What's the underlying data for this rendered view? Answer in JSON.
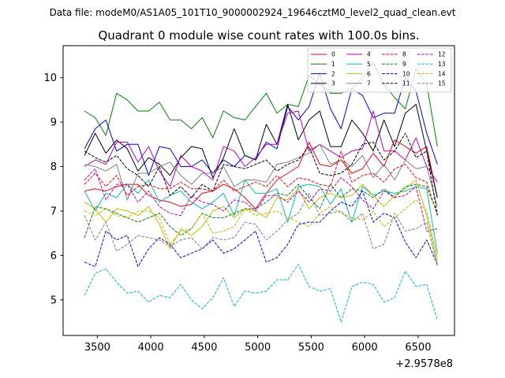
{
  "header": {
    "suptitle": "Data file: modeM0/AS1A05_101T10_9000002924_19646cztM0_level2_quad_clean.evt"
  },
  "chart_data": {
    "type": "line",
    "title": "Quadrant 0 module wise count rates with 100.0s bins.",
    "xlabel": "",
    "ylabel": "",
    "x_offset_label": "+2.9578e8",
    "xlim": [
      3180,
      6840
    ],
    "ylim": [
      4.2,
      10.72
    ],
    "xticks": [
      3500,
      4000,
      4500,
      5000,
      5500,
      6000,
      6500
    ],
    "yticks": [
      5,
      6,
      7,
      8,
      9,
      10
    ],
    "grid": false,
    "legend_position": "top-right",
    "x": [
      3380,
      3480,
      3580,
      3680,
      3780,
      3880,
      3980,
      4080,
      4180,
      4280,
      4380,
      4480,
      4580,
      4680,
      4780,
      4880,
      4980,
      5080,
      5180,
      5280,
      5380,
      5480,
      5580,
      5680,
      5780,
      5880,
      5980,
      6080,
      6180,
      6280,
      6380,
      6480,
      6580,
      6680
    ],
    "series": [
      {
        "name": "0",
        "color": "#ff0000",
        "dash": "solid",
        "values": [
          7.45,
          7.5,
          7.45,
          7.55,
          7.6,
          7.6,
          7.35,
          7.25,
          7.2,
          7.1,
          7.15,
          7.4,
          7.45,
          7.6,
          7.5,
          7.3,
          7.05,
          7.4,
          7.7,
          7.85,
          8.0,
          8.55,
          8.05,
          8.0,
          8.15,
          7.85,
          7.95,
          8.3,
          8.0,
          8.6,
          8.45,
          8.3,
          8.45,
          7.3
        ]
      },
      {
        "name": "1",
        "color": "#008000",
        "dash": "solid",
        "values": [
          9.25,
          9.1,
          8.7,
          9.65,
          9.5,
          9.25,
          9.25,
          9.45,
          9.05,
          9.05,
          8.85,
          9.1,
          8.65,
          9.25,
          9.1,
          9.05,
          9.35,
          9.65,
          9.2,
          9.4,
          9.35,
          10.05,
          9.85,
          9.65,
          9.65,
          9.75,
          10.0,
          10.35,
          9.85,
          9.55,
          9.3,
          10.2,
          9.85,
          8.45
        ]
      },
      {
        "name": "2",
        "color": "#0000ff",
        "dash": "solid",
        "values": [
          8.4,
          8.85,
          9.05,
          8.35,
          8.5,
          8.5,
          7.8,
          8.45,
          8.4,
          8.0,
          8.0,
          8.15,
          7.85,
          8.15,
          8.0,
          8.25,
          8.15,
          8.55,
          8.4,
          9.35,
          9.05,
          9.35,
          10.1,
          9.3,
          8.85,
          9.75,
          9.6,
          9.1,
          9.2,
          9.2,
          10.0,
          9.7,
          8.75,
          8.05
        ]
      },
      {
        "name": "3",
        "color": "#000000",
        "dash": "solid",
        "values": [
          8.25,
          8.75,
          8.3,
          8.6,
          8.4,
          7.9,
          8.2,
          8.05,
          7.8,
          8.2,
          8.45,
          8.4,
          7.75,
          8.2,
          8.85,
          8.25,
          8.15,
          8.95,
          8.5,
          9.4,
          8.6,
          9.05,
          9.25,
          8.45,
          8.45,
          9.05,
          8.75,
          8.35,
          9.05,
          8.45,
          9.2,
          9.4,
          8.35,
          7.3
        ]
      },
      {
        "name": "4",
        "color": "#bf00bf",
        "dash": "solid",
        "values": [
          8.0,
          8.15,
          8.05,
          8.55,
          8.55,
          8.1,
          8.45,
          7.9,
          7.55,
          8.25,
          8.0,
          7.9,
          7.7,
          8.45,
          8.35,
          8.0,
          8.2,
          8.5,
          8.5,
          9.2,
          9.25,
          8.35,
          8.5,
          8.35,
          8.2,
          8.35,
          8.4,
          9.25,
          8.35,
          8.35,
          8.15,
          8.65,
          8.0,
          7.65
        ]
      },
      {
        "name": "5",
        "color": "#00bfbf",
        "dash": "solid",
        "values": [
          7.45,
          7.0,
          7.4,
          7.3,
          7.6,
          7.4,
          7.7,
          7.2,
          7.35,
          7.45,
          7.2,
          7.05,
          7.2,
          7.4,
          6.9,
          7.7,
          7.4,
          7.4,
          7.5,
          6.75,
          7.55,
          7.6,
          7.55,
          7.15,
          7.5,
          6.75,
          7.55,
          7.35,
          7.45,
          7.4,
          7.45,
          7.55,
          7.5,
          6.05
        ]
      },
      {
        "name": "6",
        "color": "#bfbf00",
        "dash": "solid",
        "values": [
          7.2,
          7.05,
          6.75,
          7.05,
          7.0,
          6.9,
          7.1,
          6.7,
          6.15,
          6.6,
          6.45,
          6.65,
          7.0,
          7.1,
          6.85,
          7.05,
          7.0,
          6.85,
          7.3,
          7.25,
          7.5,
          7.05,
          7.3,
          7.4,
          7.3,
          7.35,
          7.6,
          7.35,
          7.1,
          7.35,
          7.5,
          7.7,
          6.9,
          5.85
        ]
      },
      {
        "name": "7",
        "color": "#808080",
        "dash": "solid",
        "values": [
          8.05,
          8.0,
          7.9,
          8.05,
          7.25,
          7.85,
          7.85,
          8.0,
          8.1,
          7.8,
          7.6,
          7.85,
          7.85,
          8.0,
          7.55,
          7.7,
          7.7,
          7.65,
          8.05,
          8.1,
          8.2,
          8.3,
          8.5,
          8.05,
          8.15,
          8.0,
          8.25,
          7.75,
          8.05,
          7.7,
          8.15,
          7.95,
          8.0,
          7.1
        ]
      },
      {
        "name": "8",
        "color": "#ff0000",
        "dash": "dashed",
        "values": [
          7.6,
          7.85,
          7.55,
          7.8,
          7.35,
          7.55,
          7.6,
          7.5,
          7.5,
          7.65,
          7.5,
          7.5,
          7.45,
          7.7,
          7.45,
          7.55,
          7.65,
          7.55,
          7.8,
          7.55,
          7.75,
          7.7,
          7.6,
          7.55,
          8.35,
          7.65,
          7.8,
          7.85,
          7.65,
          7.95,
          8.05,
          7.75,
          7.65,
          6.9
        ]
      },
      {
        "name": "9",
        "color": "#008000",
        "dash": "dashed",
        "values": [
          6.4,
          7.1,
          7.05,
          6.95,
          6.85,
          6.75,
          6.85,
          6.95,
          6.65,
          6.45,
          6.6,
          6.95,
          6.85,
          6.85,
          6.95,
          7.05,
          7.05,
          7.2,
          7.4,
          7.35,
          7.6,
          7.3,
          7.05,
          7.6,
          7.3,
          7.5,
          7.45,
          7.3,
          7.5,
          7.3,
          7.55,
          7.6,
          7.55,
          6.95
        ]
      },
      {
        "name": "10",
        "color": "#0000ff",
        "dash": "dashed",
        "values": [
          5.85,
          5.75,
          6.55,
          6.35,
          6.45,
          5.75,
          6.15,
          6.4,
          6.25,
          5.95,
          6.05,
          6.15,
          6.35,
          6.05,
          6.15,
          6.35,
          6.55,
          5.85,
          5.95,
          6.25,
          6.7,
          6.75,
          6.75,
          7.0,
          7.2,
          7.1,
          7.45,
          6.75,
          6.95,
          6.85,
          6.3,
          5.95,
          6.35,
          5.8
        ]
      },
      {
        "name": "11",
        "color": "#000000",
        "dash": "dashed",
        "values": [
          8.35,
          8.2,
          8.1,
          8.25,
          7.95,
          7.8,
          7.55,
          8.0,
          7.35,
          7.55,
          7.3,
          7.6,
          7.45,
          8.05,
          8.0,
          7.95,
          8.05,
          8.15,
          7.9,
          8.05,
          8.15,
          8.45,
          7.85,
          7.8,
          7.85,
          8.05,
          8.5,
          8.55,
          8.15,
          8.35,
          8.75,
          8.2,
          8.35,
          6.9
        ]
      },
      {
        "name": "12",
        "color": "#bf00bf",
        "dash": "dashed",
        "values": [
          7.7,
          7.95,
          7.25,
          7.6,
          7.6,
          7.2,
          7.45,
          7.1,
          6.95,
          6.9,
          7.35,
          7.2,
          7.15,
          7.0,
          7.25,
          7.2,
          7.0,
          7.35,
          7.35,
          7.2,
          7.45,
          7.2,
          7.5,
          7.45,
          7.75,
          7.55,
          7.25,
          7.05,
          7.45,
          7.3,
          7.35,
          7.55,
          6.55,
          6.6
        ]
      },
      {
        "name": "13",
        "color": "#00bfbf",
        "dash": "dashed",
        "values": [
          5.1,
          5.6,
          5.7,
          5.4,
          5.15,
          5.2,
          4.95,
          5.1,
          5.05,
          5.35,
          5.0,
          4.8,
          5.05,
          5.5,
          4.85,
          5.2,
          5.15,
          5.2,
          5.45,
          5.45,
          5.8,
          5.3,
          5.2,
          5.25,
          4.5,
          5.3,
          5.4,
          5.35,
          4.95,
          5.05,
          5.65,
          5.3,
          5.35,
          4.55
        ]
      },
      {
        "name": "14",
        "color": "#bfbf00",
        "dash": "dashed",
        "values": [
          7.0,
          6.9,
          7.05,
          6.9,
          6.85,
          7.0,
          7.0,
          6.85,
          6.25,
          6.55,
          6.6,
          6.95,
          6.5,
          6.55,
          6.65,
          7.05,
          6.9,
          6.95,
          7.0,
          6.85,
          6.75,
          6.65,
          6.95,
          7.1,
          6.95,
          6.85,
          6.8,
          7.0,
          6.65,
          6.85,
          7.05,
          7.25,
          7.0,
          5.95
        ]
      },
      {
        "name": "15",
        "color": "#808080",
        "dash": "dashed",
        "values": [
          6.9,
          6.35,
          6.75,
          6.1,
          6.25,
          6.45,
          6.4,
          6.35,
          6.2,
          6.35,
          6.4,
          6.15,
          6.4,
          6.35,
          6.4,
          6.75,
          6.7,
          6.35,
          6.55,
          6.8,
          6.95,
          7.4,
          6.9,
          6.95,
          7.0,
          6.75,
          6.95,
          6.15,
          6.25,
          6.95,
          6.55,
          6.6,
          6.75,
          5.75
        ]
      }
    ]
  }
}
